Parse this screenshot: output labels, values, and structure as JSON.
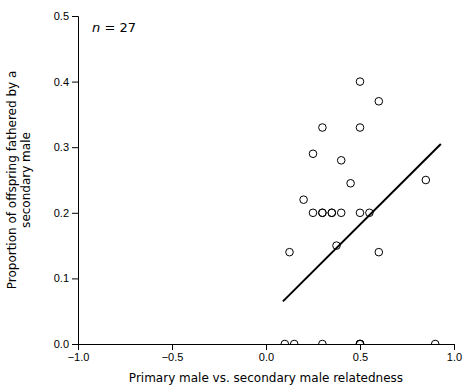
{
  "chart_data": {
    "type": "scatter",
    "series": [
      {
        "type": "scatter",
        "marker": "open-circle",
        "color": "#000000",
        "x": [
          0.1,
          0.15,
          0.2,
          0.25,
          0.3,
          0.3,
          0.35,
          0.375,
          0.4,
          0.4,
          0.45,
          0.5,
          0.5,
          0.5,
          0.5,
          0.5,
          0.5,
          0.55,
          0.6,
          0.6,
          0.85,
          0.9,
          0.125,
          0.25,
          0.3,
          0.3,
          0.35
        ],
        "values": [
          0.0,
          0.0,
          0.22,
          0.29,
          0.2,
          0.33,
          0.2,
          0.15,
          0.2,
          0.28,
          0.245,
          0.0,
          0.0,
          0.0,
          0.2,
          0.33,
          0.4,
          0.2,
          0.14,
          0.37,
          0.25,
          0.0,
          0.14,
          0.2,
          0.0,
          0.2,
          0.2
        ]
      },
      {
        "type": "line",
        "line_style": "solid",
        "color": "#000000",
        "x": [
          0.09,
          0.93
        ],
        "values": [
          0.065,
          0.305
        ]
      }
    ],
    "annotation": "n = 27",
    "xlabel": "Primary male vs. secondary male relatedness",
    "ylabel": "Proportion of offspring fathered by a\nsecondary male",
    "xlim": [
      -1.0,
      1.0
    ],
    "ylim": [
      0.0,
      0.5
    ],
    "xticks": [
      {
        "value": -1.0,
        "label": "−1.0"
      },
      {
        "value": -0.5,
        "label": "−0.5"
      },
      {
        "value": 0.0,
        "label": "0.0"
      },
      0.5,
      {
        "value": 1.0,
        "label": "1.0"
      }
    ],
    "yticks": [
      {
        "value": 0.0,
        "label": "0.0"
      },
      0.1,
      0.2,
      0.3,
      0.4,
      0.5
    ]
  }
}
